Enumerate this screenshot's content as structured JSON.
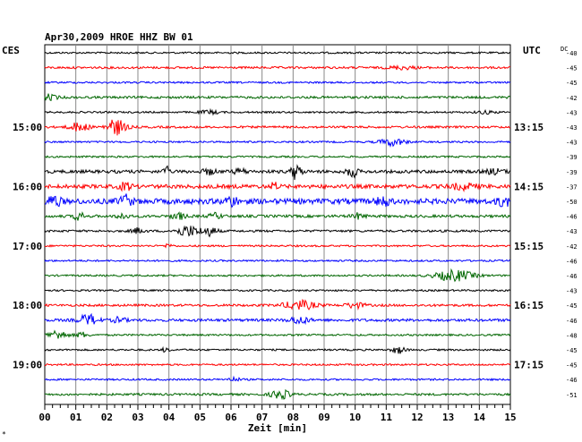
{
  "chart_data": {
    "type": "line",
    "title": "Apr30,2009   HROE HHZ BW 01",
    "xlabel": "Zeit [min]",
    "left_label": "CES",
    "right_label": "UTC",
    "dc_label": "DC",
    "bottom_mark": "*",
    "xlim": [
      0,
      15
    ],
    "x_ticks": [
      "00",
      "01",
      "02",
      "03",
      "04",
      "05",
      "06",
      "07",
      "08",
      "09",
      "10",
      "11",
      "12",
      "13",
      "14",
      "15"
    ],
    "colors": [
      "#000000",
      "#ff0000",
      "#0000ff",
      "#006600"
    ],
    "left_time_labels": [
      {
        "row": 5,
        "label": "15:00"
      },
      {
        "row": 9,
        "label": "16:00"
      },
      {
        "row": 13,
        "label": "17:00"
      },
      {
        "row": 17,
        "label": "18:00"
      },
      {
        "row": 21,
        "label": "19:00"
      }
    ],
    "right_time_labels": [
      {
        "row": 5,
        "label": "13:15"
      },
      {
        "row": 9,
        "label": "14:15"
      },
      {
        "row": 13,
        "label": "15:15"
      },
      {
        "row": 17,
        "label": "16:15"
      },
      {
        "row": 21,
        "label": "17:15"
      }
    ],
    "dc_values": [
      "-40",
      "-45",
      "-45",
      "-42",
      "-43",
      "-43",
      "-43",
      "-39",
      "-39",
      "-37",
      "-50",
      "-46",
      "-43",
      "-42",
      "-46",
      "-46",
      "-43",
      "-45",
      "-46",
      "-48",
      "-45",
      "-45",
      "-46",
      "-51"
    ],
    "traces": [
      {
        "base": 1.0,
        "events": []
      },
      {
        "base": 1.2,
        "events": [
          {
            "t": 11.5,
            "a": 1.8,
            "w": 0.4
          }
        ]
      },
      {
        "base": 1.0,
        "events": []
      },
      {
        "base": 1.3,
        "events": [
          {
            "t": 0.1,
            "a": 3,
            "w": 0.3
          }
        ]
      },
      {
        "base": 1.0,
        "events": [
          {
            "t": 5.3,
            "a": 2,
            "w": 0.3
          },
          {
            "t": 14.2,
            "a": 1.5,
            "w": 0.3
          }
        ]
      },
      {
        "base": 1.2,
        "events": [
          {
            "t": 1.1,
            "a": 5,
            "w": 0.3
          },
          {
            "t": 2.3,
            "a": 9,
            "w": 0.3
          }
        ]
      },
      {
        "base": 1.0,
        "events": [
          {
            "t": 11.2,
            "a": 4,
            "w": 0.4
          }
        ]
      },
      {
        "base": 1.0,
        "events": []
      },
      {
        "base": 1.8,
        "events": [
          {
            "t": 3.9,
            "a": 7,
            "w": 0.08
          },
          {
            "t": 5.3,
            "a": 3,
            "w": 0.2
          },
          {
            "t": 6.3,
            "a": 3,
            "w": 0.2
          },
          {
            "t": 8.1,
            "a": 9,
            "w": 0.15
          },
          {
            "t": 9.9,
            "a": 7,
            "w": 0.15
          },
          {
            "t": 14.5,
            "a": 2.5,
            "w": 0.3
          }
        ]
      },
      {
        "base": 2.2,
        "events": [
          {
            "t": 2.6,
            "a": 4,
            "w": 0.2
          },
          {
            "t": 7.4,
            "a": 5,
            "w": 0.1
          },
          {
            "t": 13.5,
            "a": 3,
            "w": 0.4
          }
        ]
      },
      {
        "base": 3.0,
        "events": [
          {
            "t": 0.3,
            "a": 6,
            "w": 0.2
          },
          {
            "t": 2.6,
            "a": 6,
            "w": 0.2
          },
          {
            "t": 6.0,
            "a": 5,
            "w": 0.2
          },
          {
            "t": 10.9,
            "a": 5,
            "w": 0.2
          },
          {
            "t": 14.8,
            "a": 5,
            "w": 0.2
          }
        ]
      },
      {
        "base": 1.5,
        "events": [
          {
            "t": 1.1,
            "a": 5,
            "w": 0.15
          },
          {
            "t": 2.5,
            "a": 4,
            "w": 0.15
          },
          {
            "t": 4.3,
            "a": 4,
            "w": 0.2
          },
          {
            "t": 5.5,
            "a": 3,
            "w": 0.2
          },
          {
            "t": 10.1,
            "a": 3,
            "w": 0.2
          }
        ]
      },
      {
        "base": 1.2,
        "events": [
          {
            "t": 3.0,
            "a": 3,
            "w": 0.2
          },
          {
            "t": 4.6,
            "a": 6,
            "w": 0.35
          },
          {
            "t": 5.3,
            "a": 5,
            "w": 0.25
          }
        ]
      },
      {
        "base": 1.0,
        "events": [
          {
            "t": 4.0,
            "a": 3,
            "w": 0.1
          }
        ]
      },
      {
        "base": 1.0,
        "events": []
      },
      {
        "base": 1.0,
        "events": [
          {
            "t": 13.2,
            "a": 6,
            "w": 0.6
          }
        ]
      },
      {
        "base": 1.0,
        "events": []
      },
      {
        "base": 1.3,
        "events": [
          {
            "t": 8.2,
            "a": 5,
            "w": 0.5
          },
          {
            "t": 10.0,
            "a": 3,
            "w": 0.3
          }
        ]
      },
      {
        "base": 1.5,
        "events": [
          {
            "t": 1.4,
            "a": 6,
            "w": 0.3
          },
          {
            "t": 2.4,
            "a": 3,
            "w": 0.2
          },
          {
            "t": 8.2,
            "a": 4,
            "w": 0.3
          }
        ]
      },
      {
        "base": 1.0,
        "events": [
          {
            "t": 0.4,
            "a": 5,
            "w": 0.3
          },
          {
            "t": 1.2,
            "a": 3,
            "w": 0.2
          }
        ]
      },
      {
        "base": 1.0,
        "events": [
          {
            "t": 3.9,
            "a": 3,
            "w": 0.1
          },
          {
            "t": 11.4,
            "a": 4,
            "w": 0.2
          }
        ]
      },
      {
        "base": 1.0,
        "events": []
      },
      {
        "base": 1.0,
        "events": [
          {
            "t": 6.1,
            "a": 2,
            "w": 0.2
          }
        ]
      },
      {
        "base": 1.2,
        "events": [
          {
            "t": 7.6,
            "a": 5,
            "w": 0.3
          }
        ]
      }
    ]
  }
}
